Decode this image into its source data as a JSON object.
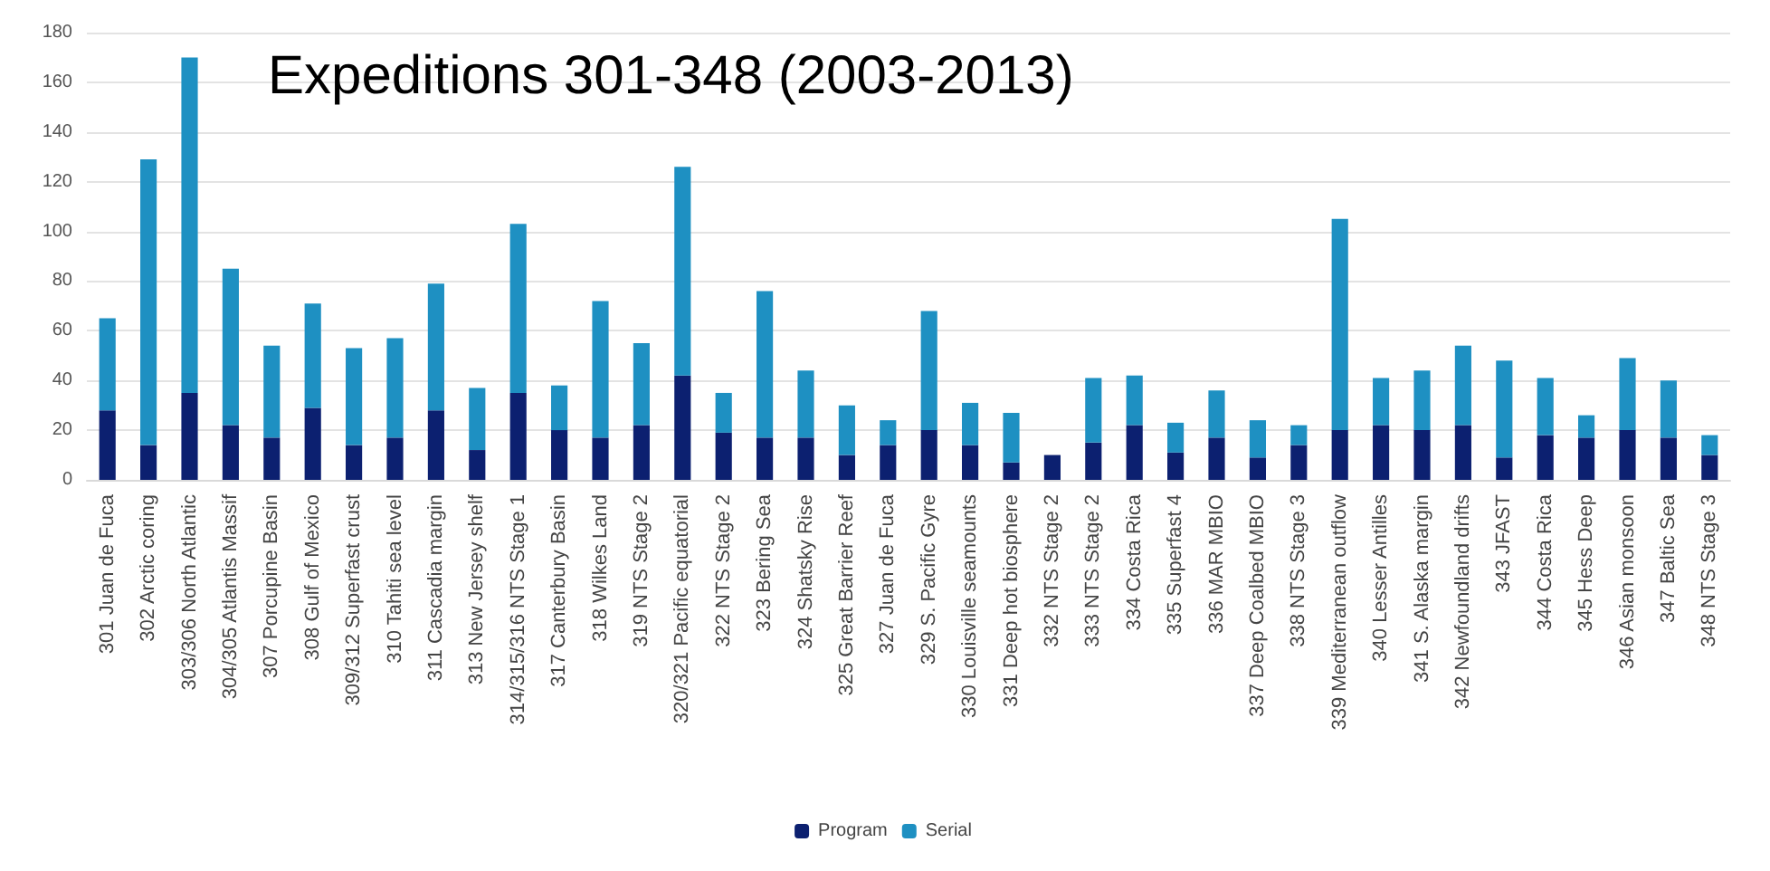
{
  "chart_data": {
    "type": "bar",
    "stacked": true,
    "title": "Expeditions 301-348 (2003-2013)",
    "categories": [
      "301 Juan de Fuca",
      "302 Arctic coring",
      "303/306 North Atlantic",
      "304/305 Atlantis Massif",
      "307 Porcupine Basin",
      "308 Gulf of Mexico",
      "309/312 Superfast crust",
      "310 Tahiti sea level",
      "311 Cascadia margin",
      "313 New Jersey shelf",
      "314/315/316 NTS Stage 1",
      "317 Canterbury Basin",
      "318 Wilkes Land",
      "319 NTS Stage 2",
      "320/321 Pacific equatorial",
      "322 NTS Stage 2",
      "323 Bering Sea",
      "324 Shatsky Rise",
      "325 Great Barrier Reef",
      "327 Juan de Fuca",
      "329 S. Pacific Gyre",
      "330 Louisville seamounts",
      "331 Deep hot biosphere",
      "332 NTS Stage 2",
      "333 NTS Stage 2",
      "334 Costa Rica",
      "335 Superfast 4",
      "336 MAR MBIO",
      "337 Deep Coalbed MBIO",
      "338 NTS Stage 3",
      "339 Mediterranean outflow",
      "340 Lesser Antilles",
      "341 S. Alaska margin",
      "342 Newfoundland drifts",
      "343 JFAST",
      "344 Costa Rica",
      "345 Hess Deep",
      "346 Asian monsoon",
      "347 Baltic Sea",
      "348 NTS Stage 3"
    ],
    "series": [
      {
        "name": "Program",
        "color": "#0c2070",
        "values": [
          28,
          14,
          35,
          22,
          17,
          29,
          14,
          17,
          28,
          12,
          35,
          20,
          17,
          22,
          42,
          19,
          17,
          17,
          10,
          14,
          20,
          14,
          7,
          10,
          15,
          22,
          11,
          17,
          9,
          14,
          20,
          22,
          20,
          22,
          9,
          18,
          17,
          20,
          17,
          10
        ]
      },
      {
        "name": "Serial",
        "color": "#1e90c2",
        "values": [
          37,
          115,
          135,
          63,
          37,
          42,
          39,
          40,
          51,
          25,
          68,
          18,
          55,
          33,
          84,
          16,
          59,
          27,
          20,
          10,
          48,
          17,
          20,
          0,
          26,
          20,
          12,
          19,
          15,
          8,
          85,
          19,
          24,
          32,
          39,
          23,
          9,
          29,
          23,
          8
        ]
      }
    ],
    "ylim": [
      0,
      180
    ],
    "yticks": [
      0,
      20,
      40,
      60,
      80,
      100,
      120,
      140,
      160,
      180
    ],
    "grid": "y",
    "legend": "bottom"
  }
}
